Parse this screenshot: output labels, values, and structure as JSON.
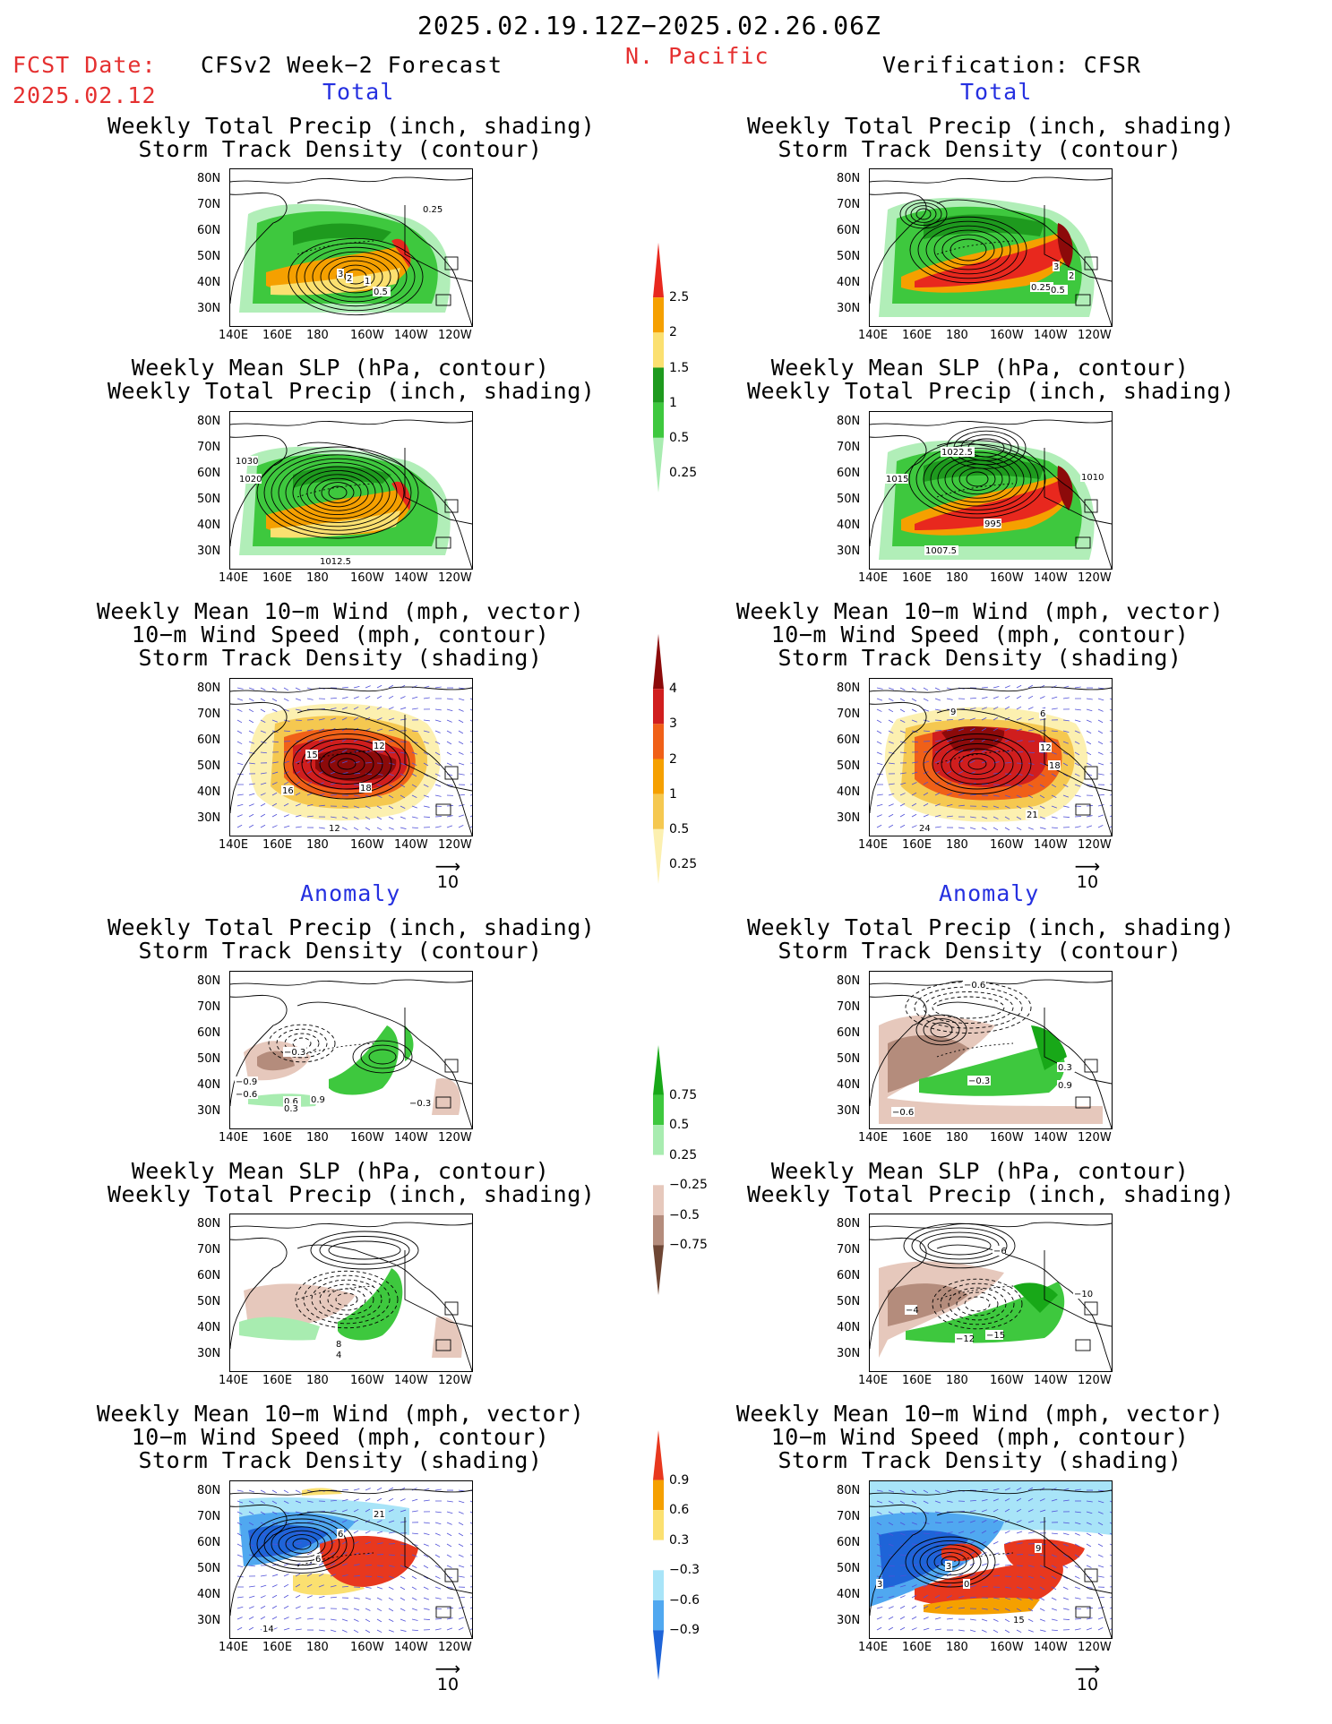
{
  "header": {
    "date_range": "2025.02.19.12Z−2025.02.26.06Z",
    "fcst_label": "FCST Date:",
    "fcst_date": "2025.02.12",
    "left_title": "CFSv2 Week−2 Forecast",
    "region": "N. Pacific",
    "right_title": "Verification: CFSR"
  },
  "section_labels": {
    "total": "Total",
    "anomaly": "Anomaly"
  },
  "panel_titles": {
    "precip_storm": [
      "Weekly Total Precip (inch, shading)",
      "Storm Track Density (contour)"
    ],
    "slp_precip": [
      "Weekly Mean SLP (hPa, contour)",
      "Weekly Total Precip (inch, shading)"
    ],
    "wind_storm": [
      "Weekly Mean 10−m Wind (mph, vector)",
      "10−m Wind Speed (mph, contour)",
      "Storm Track Density (shading)"
    ]
  },
  "axes": {
    "lat_labels": [
      "80N",
      "70N",
      "60N",
      "50N",
      "40N",
      "30N"
    ],
    "lon_labels": [
      "140E",
      "160E",
      "180",
      "160W",
      "140W",
      "120W"
    ]
  },
  "vector_ref": "10",
  "colorbars": [
    {
      "labels": [
        "2.5",
        "2",
        "1.5",
        "1",
        "0.5",
        "0.25"
      ],
      "colors": [
        "#e8281e",
        "#f5a000",
        "#fbe070",
        "#1e9a1e",
        "#3ec83e",
        "#a8ecb0"
      ]
    },
    {
      "labels": [
        "4",
        "3",
        "2",
        "1",
        "0.5",
        "0.25"
      ],
      "colors": [
        "#8c0a0a",
        "#d01e1e",
        "#f06018",
        "#f5a000",
        "#f5c850",
        "#fcf0b0"
      ]
    },
    {
      "labels": [
        "0.75",
        "0.5",
        "0.25",
        "−0.25",
        "−0.5",
        "−0.75"
      ],
      "colors": [
        "#18a818",
        "#3ec83e",
        "#a8ecb0",
        "#ffffff",
        "#e6c8bc",
        "#b48c7c",
        "#6e4634"
      ]
    },
    {
      "labels": [
        "0.9",
        "0.6",
        "0.3",
        "−0.3",
        "−0.6",
        "−0.9"
      ],
      "colors": [
        "#e8381e",
        "#f5a000",
        "#fbe070",
        "#ffffff",
        "#a8e4f8",
        "#50a8f0",
        "#1e64d8"
      ]
    }
  ],
  "contour_labels": {
    "p1L": [
      "1",
      "0.5",
      "2",
      "3",
      "0.25"
    ],
    "p1R": [
      "3",
      "2",
      "0.25",
      "0.5"
    ],
    "p2L": [
      "1030",
      "1020",
      "1012.5"
    ],
    "p2R": [
      "1022.5",
      "1015",
      "1010",
      "995",
      "1007.5"
    ],
    "p3L": [
      "15",
      "12",
      "16",
      "18",
      "12"
    ],
    "p3R": [
      "9",
      "6",
      "12",
      "18",
      "21",
      "24"
    ],
    "p4L": [
      "−0.3",
      "−0.9",
      "−0.6",
      "0.6",
      "0.9",
      "0.3",
      "−0.3"
    ],
    "p4R": [
      "−0.6",
      "−0.3",
      "0.3",
      "0.9",
      "−0.6"
    ],
    "p5L": [
      "8",
      "4"
    ],
    "p5R": [
      "−6",
      "−4",
      "−10",
      "−12",
      "−15"
    ],
    "p6L": [
      "21",
      "6",
      "6",
      "14"
    ],
    "p6R": [
      "3",
      "3",
      "0",
      "9",
      "15"
    ]
  }
}
